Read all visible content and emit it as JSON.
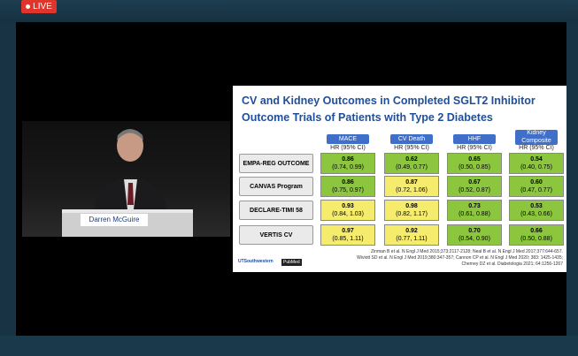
{
  "live_badge": "LIVE",
  "speaker": {
    "name": "Darren McGuire"
  },
  "slide": {
    "title": [
      "CV and Kidney Outcomes in Completed SGLT2 Inhibitor",
      "Outcome Trials of Patients with Type 2 Diabetes"
    ],
    "columns": [
      {
        "name": "MACE",
        "sub": "HR (95% CI)"
      },
      {
        "name": "CV Death",
        "sub": "HR (95% CI)"
      },
      {
        "name": "HHF",
        "sub": "HR (95% CI)"
      },
      {
        "name": "Kidney Composite",
        "sub": "HR (95% CI)"
      }
    ],
    "rows": [
      {
        "label": "EMPA-REG OUTCOME",
        "cells": [
          {
            "hr": "0.86",
            "ci": "(0.74, 0.99)",
            "color": "#8cc63f"
          },
          {
            "hr": "0.62",
            "ci": "(0.49, 0.77)",
            "color": "#8cc63f"
          },
          {
            "hr": "0.65",
            "ci": "(0.50, 0.85)",
            "color": "#8cc63f"
          },
          {
            "hr": "0.54",
            "ci": "(0.40, 0.75)",
            "color": "#8cc63f"
          }
        ]
      },
      {
        "label": "CANVAS Program",
        "cells": [
          {
            "hr": "0.86",
            "ci": "(0.75, 0.97)",
            "color": "#8cc63f"
          },
          {
            "hr": "0.87",
            "ci": "(0.72, 1.06)",
            "color": "#f5ec6e"
          },
          {
            "hr": "0.67",
            "ci": "(0.52, 0.87)",
            "color": "#8cc63f"
          },
          {
            "hr": "0.60",
            "ci": "(0.47, 0.77)",
            "color": "#8cc63f"
          }
        ]
      },
      {
        "label": "DECLARE-TIMI 58",
        "cells": [
          {
            "hr": "0.93",
            "ci": "(0.84, 1.03)",
            "color": "#f5ec6e"
          },
          {
            "hr": "0.98",
            "ci": "(0.82, 1.17)",
            "color": "#f5ec6e"
          },
          {
            "hr": "0.73",
            "ci": "(0.61, 0.88)",
            "color": "#8cc63f"
          },
          {
            "hr": "0.53",
            "ci": "(0.43, 0.66)",
            "color": "#8cc63f"
          }
        ]
      },
      {
        "label": "VERTIS CV",
        "cells": [
          {
            "hr": "0.97",
            "ci": "(0.85, 1.11)",
            "color": "#f5ec6e"
          },
          {
            "hr": "0.92",
            "ci": "(0.77, 1.11)",
            "color": "#f5ec6e"
          },
          {
            "hr": "0.70",
            "ci": "(0.54, 0.90)",
            "color": "#8cc63f"
          },
          {
            "hr": "0.66",
            "ci": "(0.50, 0.88)",
            "color": "#8cc63f"
          }
        ]
      }
    ],
    "references": [
      "Zinman B et al. N Engl J Med 2015;373:2117-2128; Neal B et al. N Engl J Med 2017;377:644-657.",
      "Wiviott SD et al. N Engl J Med 2019;380:347-357; Cannon CP et al. N Engl J Med 2020; 383: 1425-1435;",
      "Cherney DZ et al. Diabetologia 2021; 64:1256-1267"
    ],
    "logos": [
      "UTSouthwestern",
      "PubMed"
    ]
  }
}
